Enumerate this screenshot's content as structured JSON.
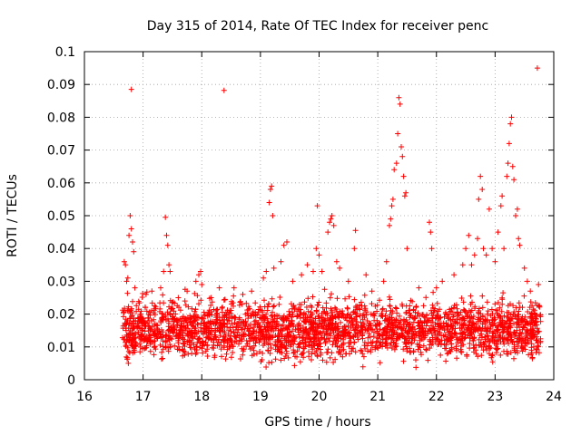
{
  "chart_data": {
    "type": "scatter",
    "title": "Day 315 of 2014, Rate Of TEC Index for receiver penc",
    "xlabel": "GPS time / hours",
    "ylabel": "ROTI / TECUs",
    "xlim": [
      16,
      24
    ],
    "ylim": [
      0,
      0.1
    ],
    "xticks": [
      "16",
      "17",
      "18",
      "19",
      "20",
      "21",
      "22",
      "23",
      "24"
    ],
    "yticks": [
      "0",
      "0.01",
      "0.02",
      "0.03",
      "0.04",
      "0.05",
      "0.06",
      "0.07",
      "0.08",
      "0.09",
      "0.1"
    ],
    "xtick_values": [
      16,
      17,
      18,
      19,
      20,
      21,
      22,
      23,
      24
    ],
    "ytick_values": [
      0,
      0.01,
      0.02,
      0.03,
      0.04,
      0.05,
      0.06,
      0.07,
      0.08,
      0.09,
      0.1
    ],
    "grid": true,
    "marker": "+",
    "color": "#ff0000",
    "x_data_range": [
      16.65,
      23.8
    ],
    "series": [
      {
        "name": "ROTI",
        "points": [
          [
            16.68,
            0.036
          ],
          [
            16.7,
            0.035
          ],
          [
            16.72,
            0.03
          ],
          [
            16.74,
            0.031
          ],
          [
            16.76,
            0.044
          ],
          [
            16.78,
            0.05
          ],
          [
            16.8,
            0.046
          ],
          [
            16.82,
            0.042
          ],
          [
            16.8,
            0.0885
          ],
          [
            16.84,
            0.039
          ],
          [
            16.86,
            0.028
          ],
          [
            17.05,
            0.026
          ],
          [
            17.15,
            0.027
          ],
          [
            17.3,
            0.028
          ],
          [
            17.35,
            0.033
          ],
          [
            17.38,
            0.0495
          ],
          [
            17.4,
            0.044
          ],
          [
            17.42,
            0.041
          ],
          [
            17.44,
            0.035
          ],
          [
            17.46,
            0.033
          ],
          [
            17.6,
            0.025
          ],
          [
            17.75,
            0.027
          ],
          [
            17.9,
            0.03
          ],
          [
            17.95,
            0.032
          ],
          [
            17.98,
            0.033
          ],
          [
            18.0,
            0.029
          ],
          [
            18.3,
            0.028
          ],
          [
            18.38,
            0.0882
          ],
          [
            18.55,
            0.028
          ],
          [
            18.7,
            0.026
          ],
          [
            18.85,
            0.027
          ],
          [
            19.05,
            0.031
          ],
          [
            19.1,
            0.033
          ],
          [
            19.15,
            0.054
          ],
          [
            19.17,
            0.058
          ],
          [
            19.19,
            0.059
          ],
          [
            19.21,
            0.05
          ],
          [
            19.23,
            0.034
          ],
          [
            19.35,
            0.036
          ],
          [
            19.4,
            0.041
          ],
          [
            19.45,
            0.042
          ],
          [
            19.55,
            0.03
          ],
          [
            19.7,
            0.032
          ],
          [
            19.8,
            0.035
          ],
          [
            19.9,
            0.033
          ],
          [
            19.95,
            0.04
          ],
          [
            19.97,
            0.053
          ],
          [
            20.0,
            0.038
          ],
          [
            20.05,
            0.033
          ],
          [
            20.15,
            0.045
          ],
          [
            20.18,
            0.048
          ],
          [
            20.2,
            0.049
          ],
          [
            20.22,
            0.05
          ],
          [
            20.25,
            0.047
          ],
          [
            20.3,
            0.036
          ],
          [
            20.35,
            0.034
          ],
          [
            20.5,
            0.03
          ],
          [
            20.6,
            0.04
          ],
          [
            20.62,
            0.0455
          ],
          [
            20.8,
            0.032
          ],
          [
            20.9,
            0.027
          ],
          [
            21.1,
            0.03
          ],
          [
            21.15,
            0.036
          ],
          [
            21.2,
            0.047
          ],
          [
            21.22,
            0.049
          ],
          [
            21.24,
            0.053
          ],
          [
            21.26,
            0.055
          ],
          [
            21.28,
            0.064
          ],
          [
            21.32,
            0.066
          ],
          [
            21.34,
            0.075
          ],
          [
            21.36,
            0.086
          ],
          [
            21.38,
            0.084
          ],
          [
            21.4,
            0.071
          ],
          [
            21.42,
            0.068
          ],
          [
            21.44,
            0.062
          ],
          [
            21.46,
            0.056
          ],
          [
            21.48,
            0.057
          ],
          [
            21.5,
            0.04
          ],
          [
            21.7,
            0.028
          ],
          [
            21.88,
            0.048
          ],
          [
            21.9,
            0.045
          ],
          [
            21.92,
            0.04
          ],
          [
            22.0,
            0.028
          ],
          [
            22.1,
            0.03
          ],
          [
            22.3,
            0.032
          ],
          [
            22.45,
            0.035
          ],
          [
            22.5,
            0.04
          ],
          [
            22.55,
            0.044
          ],
          [
            22.6,
            0.035
          ],
          [
            22.65,
            0.038
          ],
          [
            22.7,
            0.043
          ],
          [
            22.72,
            0.055
          ],
          [
            22.75,
            0.062
          ],
          [
            22.78,
            0.058
          ],
          [
            22.8,
            0.04
          ],
          [
            22.85,
            0.038
          ],
          [
            22.9,
            0.052
          ],
          [
            22.95,
            0.04
          ],
          [
            23.0,
            0.036
          ],
          [
            23.05,
            0.045
          ],
          [
            23.1,
            0.053
          ],
          [
            23.12,
            0.056
          ],
          [
            23.15,
            0.04
          ],
          [
            23.2,
            0.062
          ],
          [
            23.22,
            0.066
          ],
          [
            23.24,
            0.072
          ],
          [
            23.26,
            0.078
          ],
          [
            23.28,
            0.08
          ],
          [
            23.3,
            0.065
          ],
          [
            23.32,
            0.061
          ],
          [
            23.35,
            0.05
          ],
          [
            23.38,
            0.052
          ],
          [
            23.4,
            0.043
          ],
          [
            23.42,
            0.041
          ],
          [
            23.5,
            0.034
          ],
          [
            23.55,
            0.03
          ],
          [
            23.6,
            0.027
          ],
          [
            23.72,
            0.095
          ],
          [
            23.74,
            0.029
          ]
        ]
      }
    ],
    "dense_band": {
      "x_range": [
        16.65,
        23.78
      ],
      "y_range": [
        0.003,
        0.028
      ]
    }
  }
}
